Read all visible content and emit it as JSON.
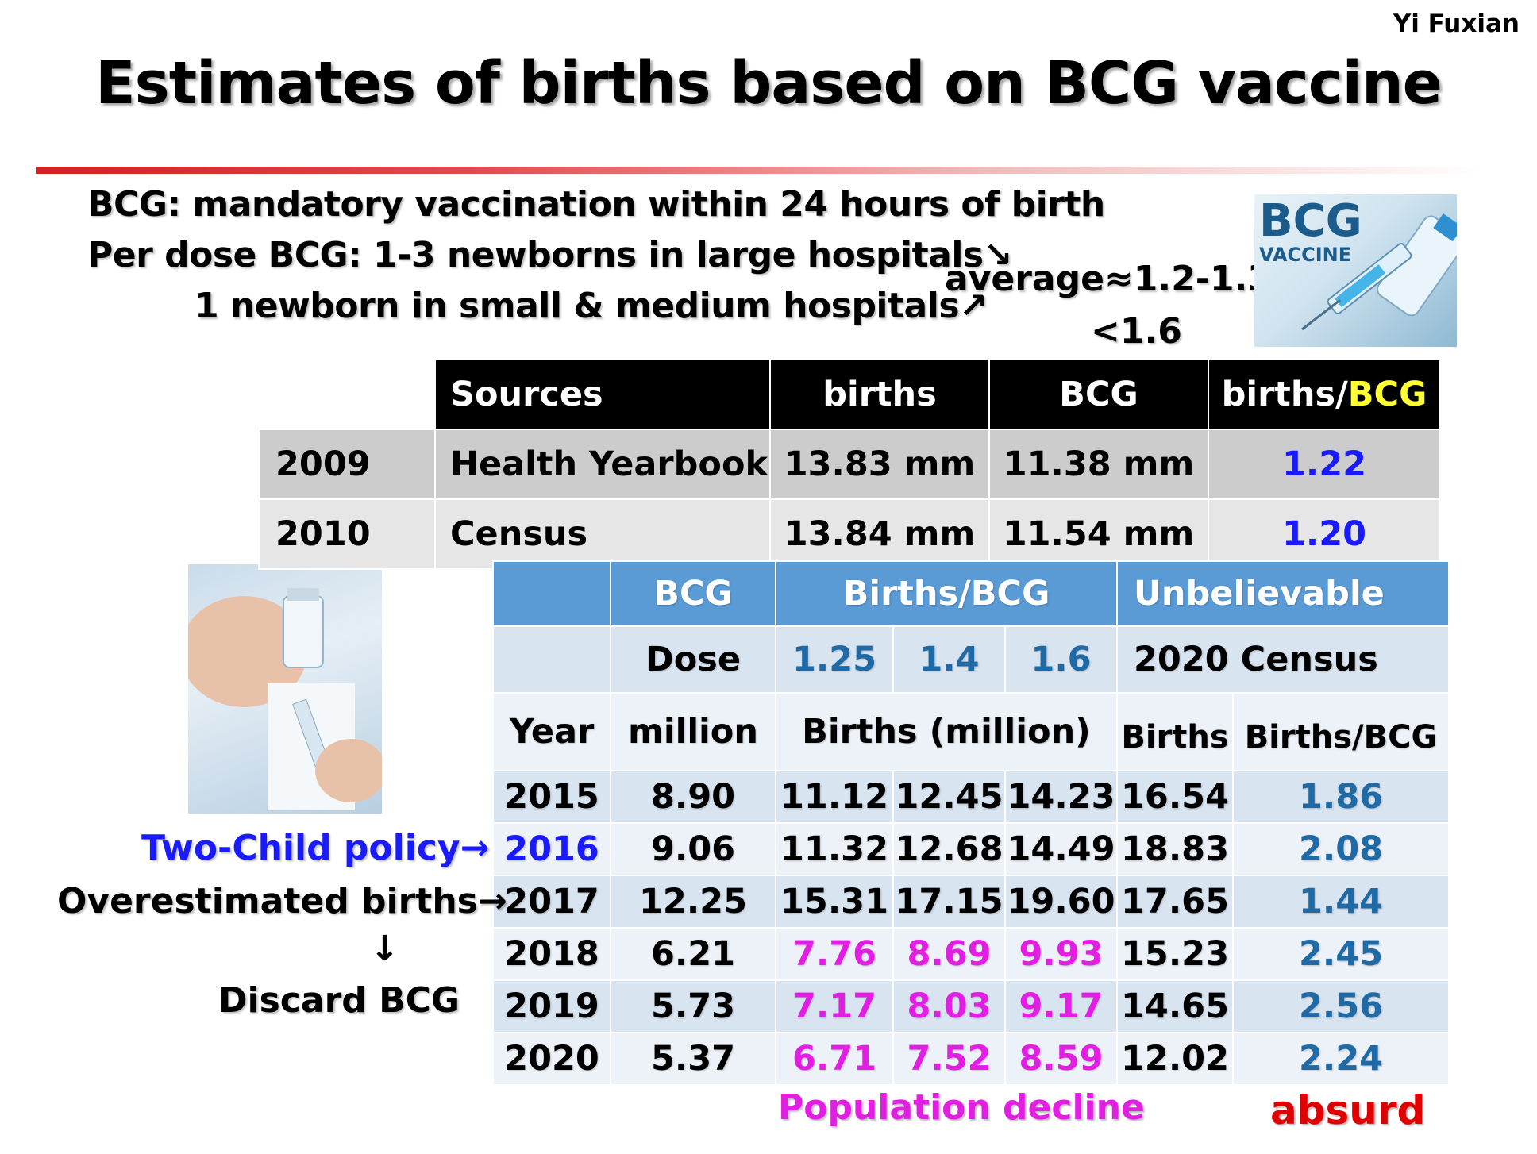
{
  "author": "Yi Fuxian",
  "title": "Estimates of births based on BCG vaccine",
  "intro": {
    "line1": "BCG: mandatory vaccination within 24 hours of birth",
    "line2": "Per dose BCG: 1-3  newborns in large hospitals↘",
    "line3": "1 newborn in small & medium hospitals↗",
    "average": "average≈1.2-1.3",
    "limit": "<1.6"
  },
  "vaccine_image": {
    "line1": "BCG",
    "line2": "VACCINE"
  },
  "top_table": {
    "headers": [
      "Sources",
      "births",
      "BCG",
      "births/",
      "BCG"
    ],
    "rows": [
      {
        "year": "2009",
        "source": "Health Yearbook",
        "births": "13.83 mm",
        "bcg": "11.38 mm",
        "ratio": "1.22"
      },
      {
        "year": "2010",
        "source": "Census",
        "births": "13.84 mm",
        "bcg": "11.54 mm",
        "ratio": "1.20"
      }
    ]
  },
  "bottom_table": {
    "header1": {
      "bcg": "BCG",
      "births_bcg": "Births/BCG",
      "unbelievable": "Unbelievable"
    },
    "header2": {
      "dose": "Dose",
      "r1": "1.25",
      "r2": "1.4",
      "r3": "1.6",
      "census": "2020 Census"
    },
    "header3": {
      "year": "Year",
      "million": "million",
      "births": "Births (million)",
      "cbirths": "Births",
      "cratio": "Births/BCG"
    },
    "rows": [
      {
        "year": "2015",
        "bcg": "8.90",
        "b1": "11.12",
        "b2": "12.45",
        "b3": "14.23",
        "census": "16.54",
        "ratio": "1.86"
      },
      {
        "year": "2016",
        "bcg": "9.06",
        "b1": "11.32",
        "b2": "12.68",
        "b3": "14.49",
        "census": "18.83",
        "ratio": "2.08"
      },
      {
        "year": "2017",
        "bcg": "12.25",
        "b1": "15.31",
        "b2": "17.15",
        "b3": "19.60",
        "census": "17.65",
        "ratio": "1.44"
      },
      {
        "year": "2018",
        "bcg": "6.21",
        "b1": "7.76",
        "b2": "8.69",
        "b3": "9.93",
        "census": "15.23",
        "ratio": "2.45"
      },
      {
        "year": "2019",
        "bcg": "5.73",
        "b1": "7.17",
        "b2": "8.03",
        "b3": "9.17",
        "census": "14.65",
        "ratio": "2.56"
      },
      {
        "year": "2020",
        "bcg": "5.37",
        "b1": "6.71",
        "b2": "7.52",
        "b3": "8.59",
        "census": "12.02",
        "ratio": "2.24"
      }
    ]
  },
  "notes": {
    "two_child": "Two-Child policy→",
    "overestimated": "Overestimated births→",
    "down_arrow": "↓",
    "discard": "Discard BCG",
    "population_decline": "Population decline",
    "absurd": "absurd"
  },
  "colors": {
    "title_rule": "#d42020",
    "table_header_blue": "#5b9bd5",
    "ratio_blue": "#1a1aff",
    "magenta": "#e21ee2",
    "absurd_red": "#e00000",
    "unbelievable_yellow": "#ffff33"
  }
}
